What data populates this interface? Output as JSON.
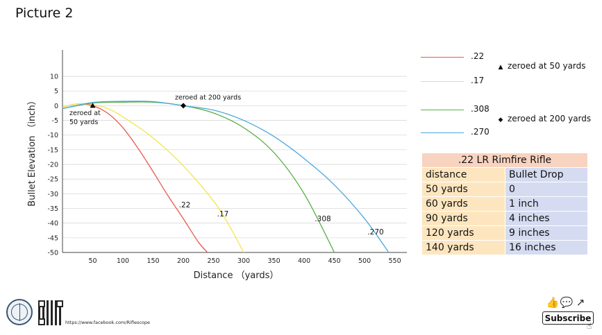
{
  "picture_title": "Picture 2",
  "chart_data": {
    "type": "line",
    "xlabel": "Distance （yards）",
    "ylabel": "Bullet Elevation （inch）",
    "xlim": [
      0,
      570
    ],
    "ylim": [
      -50,
      19
    ],
    "x_ticks": [
      50,
      100,
      150,
      200,
      250,
      300,
      350,
      400,
      450,
      500,
      550
    ],
    "y_ticks": [
      10,
      5,
      0,
      -5,
      -10,
      -15,
      -20,
      -25,
      -30,
      -35,
      -40,
      -45,
      -50
    ],
    "grid": "horizontal",
    "series": [
      {
        "name": ".22",
        "color": "#e8584f",
        "x": [
          0,
          25,
          50,
          75,
          100,
          125,
          150,
          175,
          200,
          225,
          240
        ],
        "y": [
          -0.5,
          0.6,
          0,
          -2.6,
          -7.5,
          -14.5,
          -22.5,
          -30.8,
          -38.5,
          -46.5,
          -50
        ]
      },
      {
        "name": ".17",
        "color": "#f4e44c",
        "x": [
          0,
          25,
          50,
          75,
          100,
          150,
          200,
          250,
          275,
          300
        ],
        "y": [
          -0.5,
          0.6,
          0.4,
          -1,
          -3.8,
          -11,
          -20.5,
          -32.5,
          -40.5,
          -50
        ]
      },
      {
        "name": ".308",
        "color": "#5bb04a",
        "x": [
          0,
          50,
          100,
          150,
          200,
          250,
          300,
          350,
          400,
          450
        ],
        "y": [
          -1,
          0.9,
          1.2,
          1.2,
          0,
          -2.5,
          -7.5,
          -16,
          -30,
          -50
        ]
      },
      {
        "name": ".270",
        "color": "#4aa8dc",
        "x": [
          0,
          50,
          100,
          150,
          200,
          250,
          300,
          350,
          400,
          450,
          500,
          540
        ],
        "y": [
          -1,
          1.1,
          1.5,
          1.4,
          0,
          -1.5,
          -5,
          -10.5,
          -18,
          -27,
          -38.5,
          -50
        ]
      }
    ],
    "series_labels": [
      {
        "text": ".22",
        "x": 2,
        "y": -33.5
      },
      {
        "text": ".17",
        "x": 2,
        "y": -36.5
      },
      {
        "text": ".308",
        "x": 2,
        "y": -39
      },
      {
        "text": ".270",
        "x": 2,
        "y": -43.5
      }
    ],
    "markers": [
      {
        "symbol": "triangle",
        "x": 50,
        "y": 0,
        "label_lines": [
          "zeroed at",
          "50 yards"
        ]
      },
      {
        "symbol": "diamond",
        "x": 200,
        "y": 0,
        "label_lines": [
          "zeroed at 200 yards"
        ]
      }
    ]
  },
  "legend": {
    "entries": [
      {
        "label": ".22",
        "color": "#e8584f"
      },
      {
        "label": ".17",
        "color": "#f4e44c"
      },
      {
        "label": ".308",
        "color": "#5bb04a"
      },
      {
        "label": ".270",
        "color": "#4aa8dc"
      }
    ],
    "marker_notes": [
      {
        "symbol": "▲",
        "text": "zeroed at 50 yards"
      },
      {
        "symbol": "◆",
        "text": "zeroed at 200 yards"
      }
    ]
  },
  "table": {
    "title": ".22 LR Rimfire Rifle",
    "headers": [
      "distance",
      "Bullet Drop"
    ],
    "rows": [
      [
        "50 yards",
        "0"
      ],
      [
        "60 yards",
        "1 inch"
      ],
      [
        "90 yards",
        "4 inches"
      ],
      [
        "120 yards",
        "9 inches"
      ],
      [
        "140 yards",
        "16 inches"
      ]
    ]
  },
  "footer": {
    "url": "https://www.facebook.com/Riflescope",
    "subscribe_label": "Subscribe",
    "icons": [
      "like-icon",
      "comment-icon",
      "share-icon"
    ]
  }
}
